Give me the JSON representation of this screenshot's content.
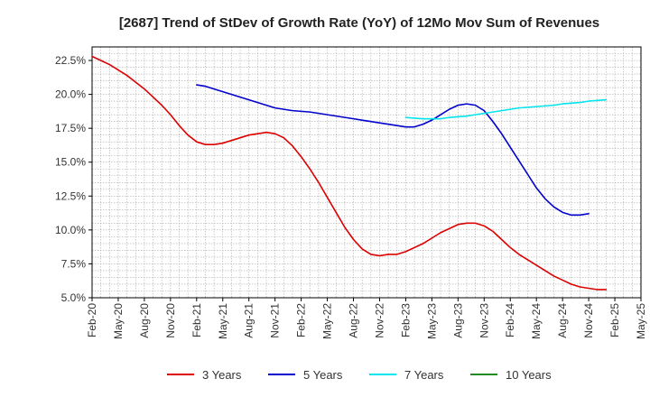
{
  "chart_data": {
    "type": "line",
    "title": "[2687]  Trend of StDev of Growth Rate (YoY) of 12Mo Mov Sum of Revenues",
    "xlabel": "",
    "ylabel": "",
    "ylim": [
      5.0,
      23.5
    ],
    "yticks": [
      5.0,
      7.5,
      10.0,
      12.5,
      15.0,
      17.5,
      20.0,
      22.5
    ],
    "ytick_labels": [
      "5.0%",
      "7.5%",
      "10.0%",
      "12.5%",
      "15.0%",
      "17.5%",
      "20.0%",
      "22.5%"
    ],
    "xticks": [
      "Feb-20",
      "May-20",
      "Aug-20",
      "Nov-20",
      "Feb-21",
      "May-21",
      "Aug-21",
      "Nov-21",
      "Feb-22",
      "May-22",
      "Aug-22",
      "Nov-22",
      "Feb-23",
      "May-23",
      "Aug-23",
      "Nov-23",
      "Feb-24",
      "May-24",
      "Aug-24",
      "Nov-24",
      "Feb-25",
      "May-25"
    ],
    "x_start": "Feb-20",
    "x_end": "May-25",
    "grid": true,
    "legend_position": "bottom",
    "series": [
      {
        "name": "3 Years",
        "color": "#dd0000",
        "start_month": 0,
        "values": [
          22.8,
          22.5,
          22.2,
          21.8,
          21.4,
          20.9,
          20.4,
          19.8,
          19.2,
          18.5,
          17.7,
          17.0,
          16.5,
          16.3,
          16.3,
          16.4,
          16.6,
          16.8,
          17.0,
          17.1,
          17.2,
          17.1,
          16.8,
          16.2,
          15.4,
          14.5,
          13.5,
          12.4,
          11.3,
          10.2,
          9.3,
          8.6,
          8.2,
          8.1,
          8.2,
          8.2,
          8.4,
          8.7,
          9.0,
          9.4,
          9.8,
          10.1,
          10.4,
          10.5,
          10.5,
          10.3,
          9.9,
          9.3,
          8.7,
          8.2,
          7.8,
          7.4,
          7.0,
          6.6,
          6.3,
          6.0,
          5.8,
          5.7,
          5.6,
          5.6
        ]
      },
      {
        "name": "5 Years",
        "color": "#0000cc",
        "start_month": 12,
        "values": [
          20.7,
          20.6,
          20.4,
          20.2,
          20.0,
          19.8,
          19.6,
          19.4,
          19.2,
          19.0,
          18.9,
          18.8,
          18.75,
          18.7,
          18.6,
          18.5,
          18.4,
          18.3,
          18.2,
          18.1,
          18.0,
          17.9,
          17.8,
          17.7,
          17.6,
          17.6,
          17.8,
          18.1,
          18.5,
          18.9,
          19.2,
          19.3,
          19.2,
          18.8,
          18.0,
          17.1,
          16.1,
          15.1,
          14.1,
          13.1,
          12.3,
          11.7,
          11.3,
          11.1,
          11.1,
          11.2
        ]
      },
      {
        "name": "7 Years",
        "color": "#00e5ee",
        "start_month": 36,
        "values": [
          18.3,
          18.25,
          18.2,
          18.2,
          18.2,
          18.3,
          18.35,
          18.4,
          18.5,
          18.6,
          18.7,
          18.8,
          18.9,
          19.0,
          19.05,
          19.1,
          19.15,
          19.2,
          19.3,
          19.35,
          19.4,
          19.5,
          19.55,
          19.6
        ]
      },
      {
        "name": "10 Years",
        "color": "#228b22",
        "start_month": 0,
        "values": []
      }
    ]
  }
}
